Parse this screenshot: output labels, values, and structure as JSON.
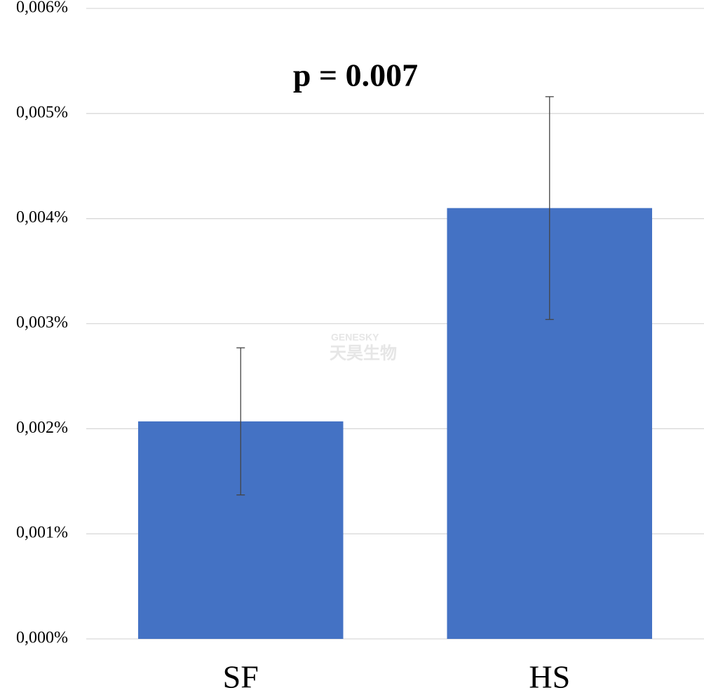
{
  "chart_data": {
    "type": "bar",
    "annotation": "p = 0.007",
    "watermark": [
      "GENESKY",
      "天昊生物"
    ],
    "categories": [
      "SF",
      "HS"
    ],
    "values": [
      0.00207,
      0.0041
    ],
    "errors": [
      0.0007,
      0.00106
    ],
    "color": "#4472c4",
    "ylim": [
      0,
      0.006
    ],
    "yticks": [
      {
        "value": 0,
        "label": "0,000%"
      },
      {
        "value": 0.001,
        "label": "0,001%"
      },
      {
        "value": 0.002,
        "label": "0,002%"
      },
      {
        "value": 0.003,
        "label": "0,003%"
      },
      {
        "value": 0.004,
        "label": "0,004%"
      },
      {
        "value": 0.005,
        "label": "0,005%"
      },
      {
        "value": 0.006,
        "label": "0,006%"
      }
    ],
    "grid": true
  }
}
